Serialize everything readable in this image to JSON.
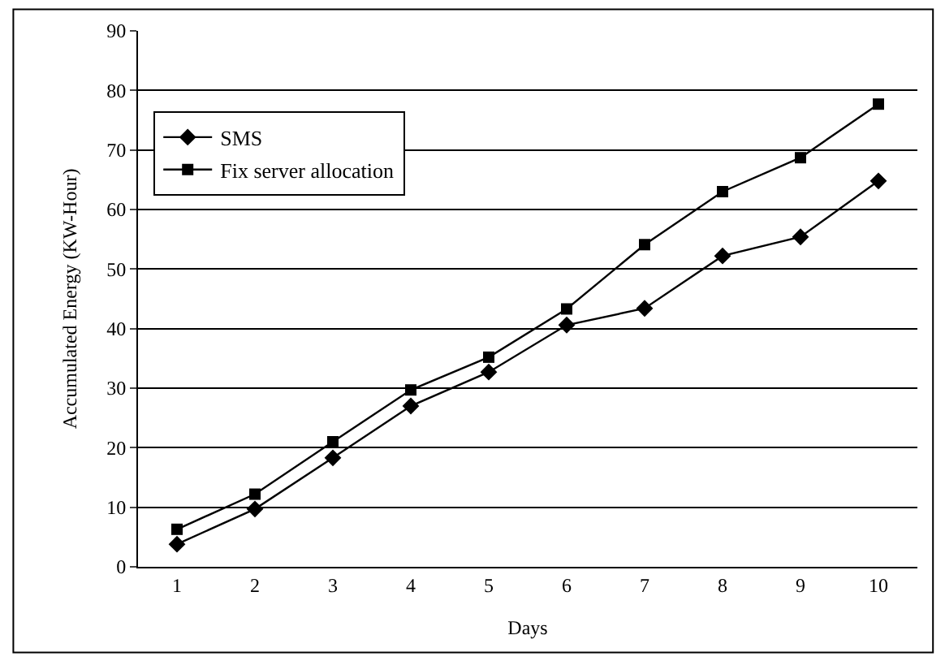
{
  "chart_data": {
    "type": "line",
    "xlabel": "Days",
    "ylabel": "Accumulated Energy (KW-Hour)",
    "categories": [
      "1",
      "2",
      "3",
      "4",
      "5",
      "6",
      "7",
      "8",
      "9",
      "10"
    ],
    "series": [
      {
        "name": "SMS",
        "color": "#000000",
        "marker": "diamond",
        "values": [
          3.8,
          9.7,
          18.3,
          27,
          32.7,
          40.6,
          43.4,
          52.2,
          55.4,
          64.8
        ]
      },
      {
        "name": "Fix server allocation",
        "color": "#000000",
        "marker": "square",
        "values": [
          6.3,
          12.2,
          21,
          29.7,
          35.2,
          43.3,
          54.1,
          63,
          68.7,
          77.7
        ]
      }
    ],
    "ylim": [
      0,
      90
    ],
    "yticks": [
      0,
      10,
      20,
      30,
      40,
      50,
      60,
      70,
      80,
      90
    ],
    "grid": "y",
    "legend": "top left",
    "line_style": "solid"
  }
}
